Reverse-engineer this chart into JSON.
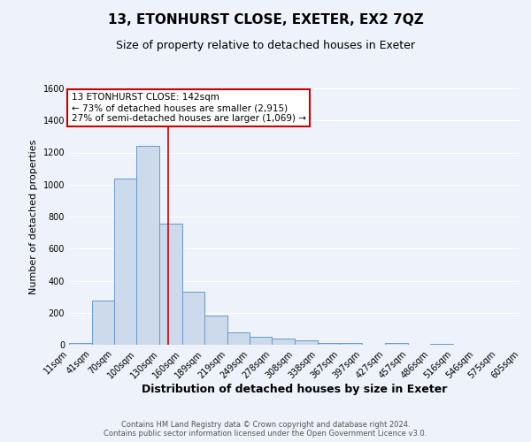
{
  "title": "13, ETONHURST CLOSE, EXETER, EX2 7QZ",
  "subtitle": "Size of property relative to detached houses in Exeter",
  "xlabel": "Distribution of detached houses by size in Exeter",
  "ylabel": "Number of detached properties",
  "footer_line1": "Contains HM Land Registry data © Crown copyright and database right 2024.",
  "footer_line2": "Contains public sector information licensed under the Open Government Licence v3.0.",
  "bar_color": "#ccdaeb",
  "bar_edgecolor": "#6699cc",
  "background_color": "#eef2fa",
  "grid_color": "#ffffff",
  "annotation_line1": "13 ETONHURST CLOSE: 142sqm",
  "annotation_line2": "← 73% of detached houses are smaller (2,915)",
  "annotation_line3": "27% of semi-detached houses are larger (1,069) →",
  "annotation_box_color": "#ffffff",
  "annotation_border_color": "#cc0000",
  "red_line_x": 142,
  "ylim": [
    0,
    1600
  ],
  "yticks": [
    0,
    200,
    400,
    600,
    800,
    1000,
    1200,
    1400,
    1600
  ],
  "bin_edges": [
    11,
    41,
    70,
    100,
    130,
    160,
    189,
    219,
    249,
    278,
    308,
    338,
    367,
    397,
    427,
    457,
    486,
    516,
    546,
    575,
    605
  ],
  "bar_heights": [
    10,
    275,
    1040,
    1240,
    755,
    330,
    180,
    75,
    48,
    38,
    25,
    13,
    10,
    0,
    12,
    0,
    8,
    0,
    0,
    0
  ],
  "title_fontsize": 11,
  "subtitle_fontsize": 9,
  "xlabel_fontsize": 9,
  "ylabel_fontsize": 8,
  "tick_fontsize": 7,
  "footer_fontsize": 6,
  "annotation_fontsize": 7.5
}
